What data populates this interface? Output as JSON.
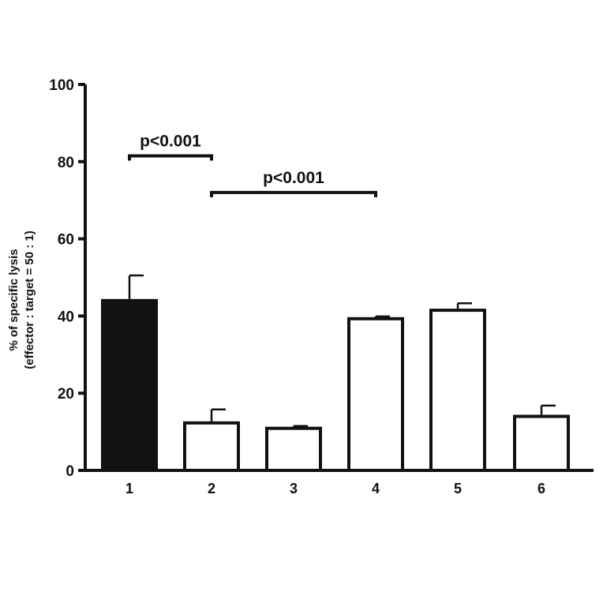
{
  "chart_data": {
    "type": "bar",
    "title": "",
    "xlabel": "",
    "ylabel": "% of specific lysis",
    "ylabel_line2": "(effector : target = 50 : 1)",
    "categories": [
      "1",
      "2",
      "3",
      "4",
      "5",
      "6"
    ],
    "values": [
      44,
      12.3,
      10.9,
      39.3,
      41.5,
      14
    ],
    "errors": [
      6.5,
      3.5,
      0.6,
      0.6,
      1.8,
      2.8
    ],
    "fill_colors": [
      "#111111",
      "#ffffff",
      "#ffffff",
      "#ffffff",
      "#ffffff",
      "#ffffff"
    ],
    "ylim": [
      0,
      100
    ],
    "yticks": [
      0,
      20,
      40,
      60,
      80,
      100
    ],
    "grid": false,
    "legend": "none",
    "significance": [
      {
        "from": "1",
        "to": "2",
        "y": 81.5,
        "label": "p<0.001"
      },
      {
        "from": "2",
        "to": "4",
        "y": 72,
        "label": "p<0.001"
      }
    ]
  }
}
